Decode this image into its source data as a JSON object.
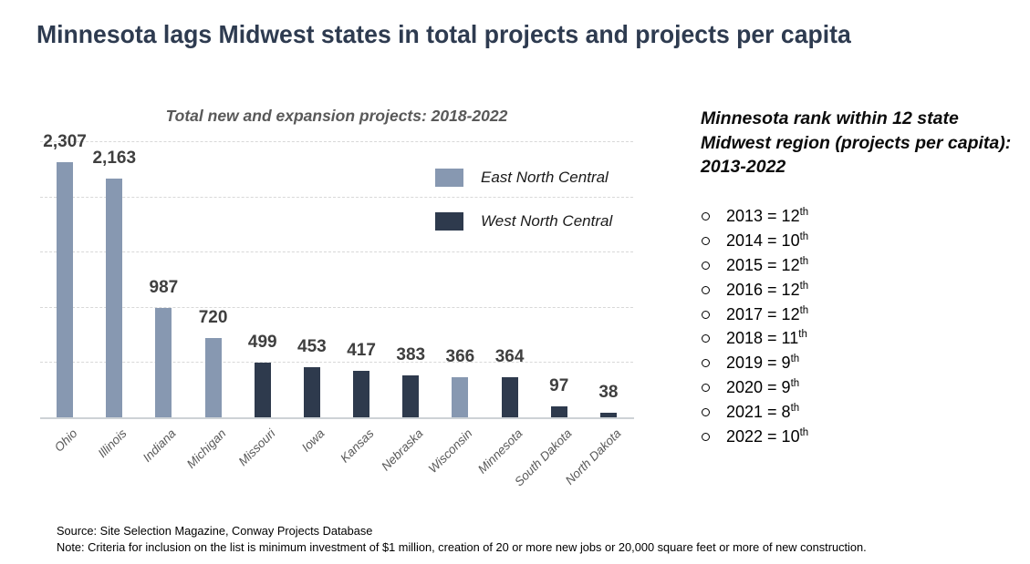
{
  "title": "Minnesota lags Midwest states in total projects and projects per capita",
  "theme": {
    "title_color": "#2E3B50",
    "east_north_central_color": "#8798B1",
    "west_north_central_color": "#2E3A4D",
    "muted_text_color": "#595959",
    "gridline_color": "#d8d8d8"
  },
  "chart_data": {
    "type": "bar",
    "title": "Total new and expansion projects: 2018-2022",
    "categories": [
      "Ohio",
      "Illinois",
      "Indiana",
      "Michigan",
      "Missouri",
      "Iowa",
      "Kansas",
      "Nebraska",
      "Wisconsin",
      "Minnesota",
      "South Dakota",
      "North Dakota"
    ],
    "values": [
      2307,
      2163,
      987,
      720,
      499,
      453,
      417,
      383,
      366,
      364,
      97,
      38
    ],
    "value_labels": [
      "2,307",
      "2,163",
      "987",
      "720",
      "499",
      "453",
      "417",
      "383",
      "366",
      "364",
      "97",
      "38"
    ],
    "groups": [
      "East North Central",
      "East North Central",
      "East North Central",
      "East North Central",
      "West North Central",
      "West North Central",
      "West North Central",
      "West North Central",
      "East North Central",
      "West North Central",
      "West North Central",
      "West North Central"
    ],
    "legend": [
      {
        "label": "East North Central",
        "color": "#8798B1"
      },
      {
        "label": "West North Central",
        "color": "#2E3A4D"
      }
    ],
    "xlabel": "",
    "ylabel": "",
    "ylim": [
      0,
      2500
    ],
    "gridline_step": 500,
    "grid": "dashed-horizontal",
    "legend_position": "inside-top-right",
    "data_labels_shown": true,
    "y_axis_labels_shown": false
  },
  "rank_panel": {
    "heading_lines": [
      "Minnesota rank within 12 state",
      "Midwest region (projects per capita):",
      "2013-2022"
    ],
    "items": [
      {
        "year": "2013",
        "rank": "12",
        "suffix": "th"
      },
      {
        "year": "2014",
        "rank": "10",
        "suffix": "th"
      },
      {
        "year": "2015",
        "rank": "12",
        "suffix": "th"
      },
      {
        "year": "2016",
        "rank": "12",
        "suffix": "th"
      },
      {
        "year": "2017",
        "rank": "12",
        "suffix": "th"
      },
      {
        "year": "2018",
        "rank": "11",
        "suffix": "th"
      },
      {
        "year": "2019",
        "rank": "9",
        "suffix": "th"
      },
      {
        "year": "2020",
        "rank": "9",
        "suffix": "th"
      },
      {
        "year": "2021",
        "rank": "8",
        "suffix": "th"
      },
      {
        "year": "2022",
        "rank": "10",
        "suffix": "th"
      }
    ]
  },
  "footer": {
    "source": "Source: Site Selection Magazine, Conway Projects Database",
    "note": "Note: Criteria for inclusion on the list is minimum investment of $1 million, creation of 20 or more new jobs or 20,000 square feet or more of new construction."
  }
}
